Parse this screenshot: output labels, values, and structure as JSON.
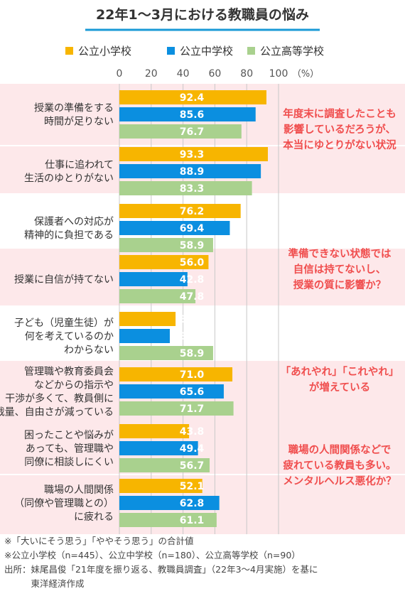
{
  "chart_data": {
    "type": "bar",
    "orientation": "horizontal",
    "title": "22年1～3月における教職員の悩み",
    "unit_label": "（%）",
    "xlim": [
      0,
      100
    ],
    "ticks": [
      0,
      20,
      40,
      60,
      80,
      100
    ],
    "grid": true,
    "legend_position": "top",
    "series": [
      {
        "name": "公立小学校",
        "color": "#f7b500"
      },
      {
        "name": "公立中学校",
        "color": "#0b8fe0"
      },
      {
        "name": "公立高等学校",
        "color": "#a9d18e"
      }
    ],
    "groups": [
      {
        "label_lines": [
          "授業の準備をする",
          "時間が足りない"
        ],
        "values": [
          92.4,
          85.6,
          76.7
        ],
        "shaded": true
      },
      {
        "label_lines": [
          "仕事に追われて",
          "生活のゆとりがない"
        ],
        "values": [
          93.3,
          88.9,
          83.3
        ],
        "shaded": true
      },
      {
        "label_lines": [
          "保護者への対応が",
          "精神的に負担である"
        ],
        "values": [
          76.2,
          69.4,
          58.9
        ],
        "shaded": false
      },
      {
        "label_lines": [
          "授業に自信が持てない"
        ],
        "values": [
          56.0,
          42.8,
          47.8
        ],
        "shaded": true
      },
      {
        "label_lines": [
          "子ども（児童生徒）が",
          "何を考えているのか",
          "わからない"
        ],
        "values": [
          35.3,
          31.7,
          58.9
        ],
        "shaded": false
      },
      {
        "label_lines": [
          "管理職や教育委員会",
          "などからの指示や",
          "干渉が多くて、教員側に",
          "裁量、自由さが減っている"
        ],
        "values": [
          71.0,
          65.6,
          71.7
        ],
        "shaded": true
      },
      {
        "label_lines": [
          "困ったことや悩みが",
          "あっても、管理職や",
          "同僚に相談しにくい"
        ],
        "values": [
          43.8,
          49.4,
          56.7
        ],
        "shaded": true
      },
      {
        "label_lines": [
          "職場の人間関係",
          "（同僚や管理職との）",
          "に疲れる"
        ],
        "values": [
          52.1,
          62.8,
          61.1
        ],
        "shaded": true
      }
    ],
    "annotations": [
      {
        "lines": [
          "年度末に調査したことも",
          "影響しているだろうが、",
          "本当にゆとりがない状況"
        ],
        "near_group": 0
      },
      {
        "lines": [
          "準備できない状態では",
          "自信は持てないし、",
          "授業の質に影響か？"
        ],
        "near_group": 3
      },
      {
        "lines": [
          "「あれやれ」「これやれ」",
          "が増えている"
        ],
        "near_group": 5
      },
      {
        "lines": [
          "職場の人間関係などで",
          "疲れている教員も多い。",
          "メンタルヘルス悪化か？"
        ],
        "near_group": 6
      }
    ],
    "annotation_color": "#f04e4e",
    "shade_color": "#fde8ea"
  },
  "notes": [
    "※「大いにそう思う」「ややそう思う」の合計値",
    "※公立小学校（n=445）、公立中学校（n=180）、公立高等学校（n=90）",
    "出所：妹尾昌俊「21年度を振り返る、教職員調査」（22年3～4月実施）を基に",
    "　　　東洋経済作成"
  ]
}
